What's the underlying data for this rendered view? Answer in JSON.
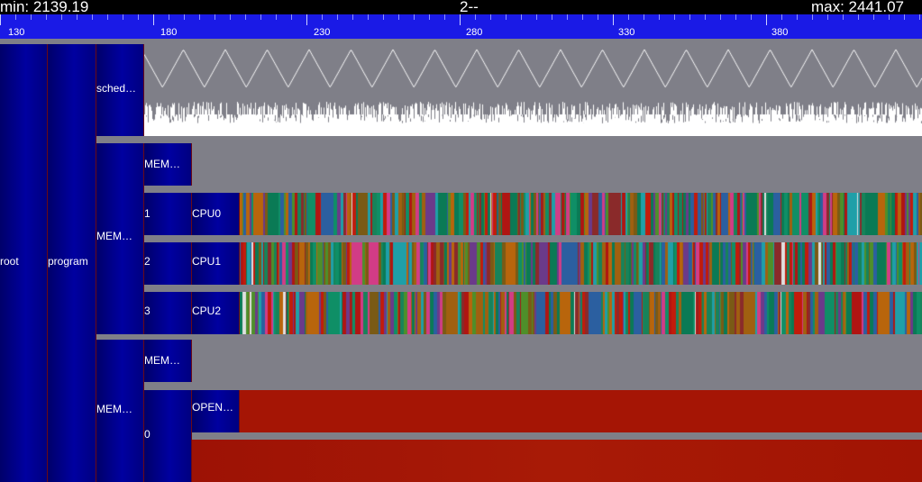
{
  "header": {
    "min_label": "min: 2139.19",
    "title": "2--",
    "max_label": "max: 2441.07"
  },
  "ruler": {
    "ticks": [
      "130",
      "180",
      "230",
      "280",
      "330",
      "380"
    ]
  },
  "tree": {
    "root": "root",
    "program": "program",
    "sched": "sched…",
    "mem_group_1": "MEM…",
    "mem_group_1_row": "MEM…",
    "cpu_rows": [
      {
        "index": "1",
        "cpu": "CPU0"
      },
      {
        "index": "2",
        "cpu": "CPU1"
      },
      {
        "index": "3",
        "cpu": "CPU2"
      }
    ],
    "mem_group_2": "MEM…",
    "mem_group_2_row": "MEM…",
    "open_index": "0",
    "open_label": "OPEN…"
  },
  "colors": {
    "topbar": "#000000",
    "ruler": "#1a1ae6",
    "background": "#7f7f88",
    "block": "#000090",
    "open_track": "#a51505"
  }
}
